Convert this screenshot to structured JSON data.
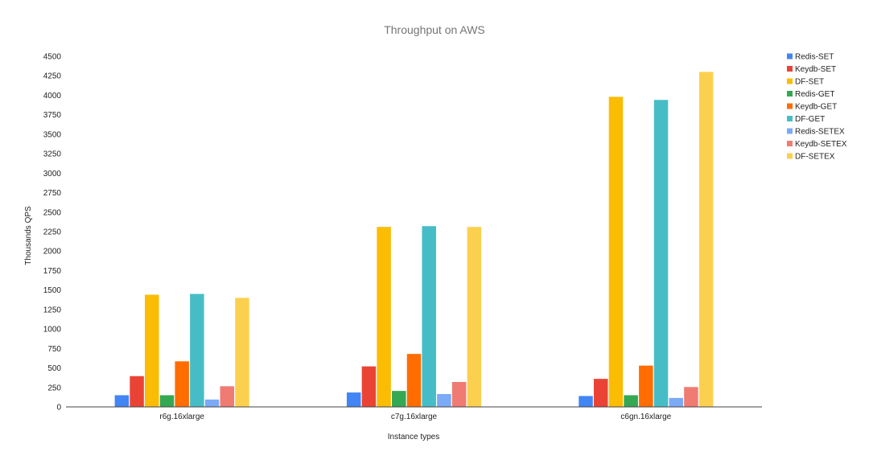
{
  "chart_data": {
    "type": "bar",
    "title": "Throughput on AWS",
    "xlabel": "Instance types",
    "ylabel": "Thousands QPS",
    "ylim": [
      0,
      4500
    ],
    "yticks": [
      0,
      250,
      500,
      750,
      1000,
      1250,
      1500,
      1750,
      2000,
      2250,
      2500,
      2750,
      3000,
      3250,
      3500,
      3750,
      4000,
      4250,
      4500
    ],
    "grid": false,
    "legend_position": "right",
    "categories": [
      "r6g.16xlarge",
      "c7g.16xlarge",
      "c6gn.16xlarge"
    ],
    "series": [
      {
        "name": "Redis-SET",
        "color": "#4285f4",
        "values": [
          150,
          185,
          140
        ]
      },
      {
        "name": "Keydb-SET",
        "color": "#ea4335",
        "values": [
          395,
          520,
          360
        ]
      },
      {
        "name": "DF-SET",
        "color": "#fbbc04",
        "values": [
          1440,
          2310,
          3980
        ]
      },
      {
        "name": "Redis-GET",
        "color": "#34a853",
        "values": [
          150,
          205,
          150
        ]
      },
      {
        "name": "Keydb-GET",
        "color": "#ff6d01",
        "values": [
          585,
          680,
          530
        ]
      },
      {
        "name": "DF-GET",
        "color": "#46bdc6",
        "values": [
          1450,
          2320,
          3940
        ]
      },
      {
        "name": "Redis-SETEX",
        "color": "#7baaf7",
        "values": [
          95,
          165,
          115
        ]
      },
      {
        "name": "Keydb-SETEX",
        "color": "#f07b72",
        "values": [
          265,
          320,
          255
        ]
      },
      {
        "name": "DF-SETEX",
        "color": "#fcd04f",
        "values": [
          1400,
          2310,
          4300
        ]
      }
    ]
  }
}
